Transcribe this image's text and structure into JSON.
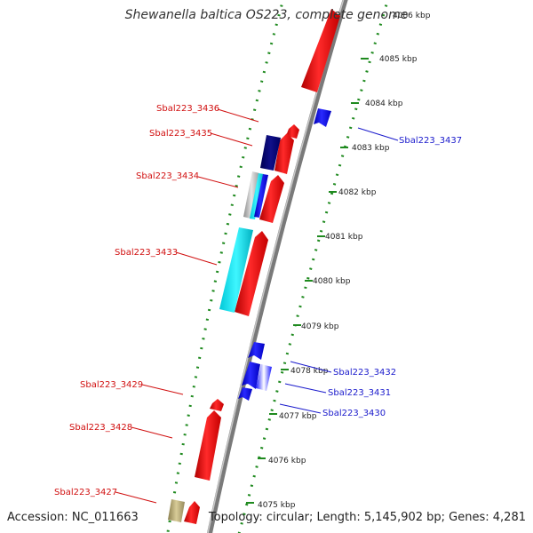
{
  "title": "Shewanella baltica OS223, complete genome",
  "footer": {
    "accession": "Accession: NC_011663",
    "summary": "Topology: circular; Length: 5,145,902 bp; Genes: 4,281"
  },
  "colors": {
    "forward": "#f20f0f",
    "reverse": "#1a1aff",
    "label_forward": "#d11010",
    "label_reverse": "#1a1acc",
    "backbone": "#8c8c8c",
    "dotted_guide": "#1f8a1f"
  },
  "ticks": [
    {
      "label": "4086 kbp"
    },
    {
      "label": "4085 kbp"
    },
    {
      "label": "4084 kbp"
    },
    {
      "label": "4083 kbp"
    },
    {
      "label": "4082 kbp"
    },
    {
      "label": "4081 kbp"
    },
    {
      "label": "4080 kbp"
    },
    {
      "label": "4079 kbp"
    },
    {
      "label": "4078 kbp"
    },
    {
      "label": "4077 kbp"
    },
    {
      "label": "4076 kbp"
    },
    {
      "label": "4075 kbp"
    }
  ],
  "gene_labels": [
    {
      "name": "Sbal223_3436",
      "strand": "forward"
    },
    {
      "name": "Sbal223_3435",
      "strand": "forward"
    },
    {
      "name": "Sbal223_3434",
      "strand": "forward"
    },
    {
      "name": "Sbal223_3433",
      "strand": "forward"
    },
    {
      "name": "Sbal223_3429",
      "strand": "forward"
    },
    {
      "name": "Sbal223_3428",
      "strand": "forward"
    },
    {
      "name": "Sbal223_3427",
      "strand": "forward"
    },
    {
      "name": "Sbal223_3437",
      "strand": "reverse"
    },
    {
      "name": "Sbal223_3432",
      "strand": "reverse"
    },
    {
      "name": "Sbal223_3431",
      "strand": "reverse"
    },
    {
      "name": "Sbal223_3430",
      "strand": "reverse"
    }
  ]
}
